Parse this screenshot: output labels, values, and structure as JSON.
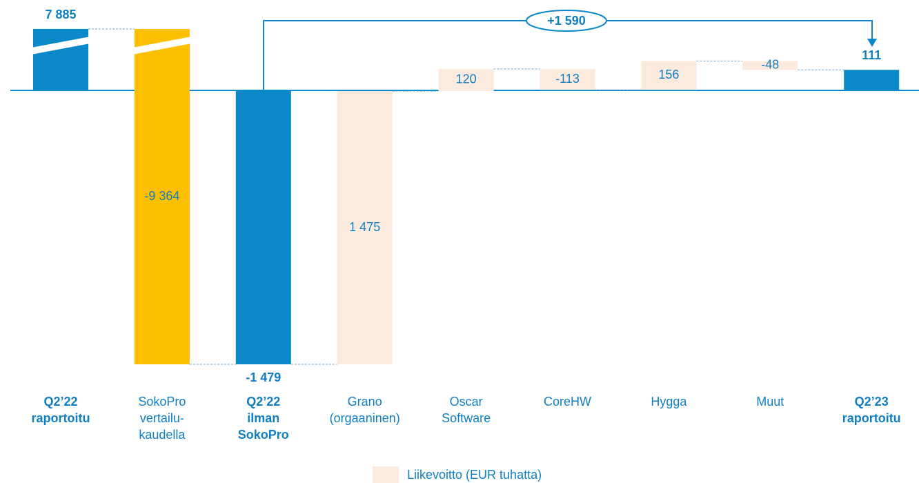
{
  "chart_data": {
    "type": "waterfall",
    "categories": [
      [
        "Q2’22",
        "raportoitu"
      ],
      [
        "SokoPro",
        "vertailu-",
        "kaudella"
      ],
      [
        "Q2’22",
        "ilman",
        "SokoPro"
      ],
      [
        "Grano",
        "(orgaaninen)"
      ],
      [
        "Oscar",
        "Software"
      ],
      [
        "CoreHW"
      ],
      [
        "Hygga"
      ],
      [
        "Muut"
      ],
      [
        "Q2’23",
        "raportoitu"
      ]
    ],
    "values": [
      7885,
      -9364,
      -1479,
      1475,
      120,
      -113,
      156,
      -48,
      111
    ],
    "value_labels": [
      "7 885",
      "-9 364",
      "-1 479",
      "1 475",
      "120",
      "-113",
      "156",
      "-48",
      "111"
    ],
    "kinds": [
      "total",
      "delta",
      "total",
      "delta",
      "delta",
      "delta",
      "delta",
      "delta",
      "total"
    ],
    "colors": [
      "#0a88c8",
      "#fbbf00",
      "#0a88c8",
      "#fdeadf",
      "#fdeadf",
      "#fdeadf",
      "#fdeadf",
      "#fdeadf",
      "#0a88c8"
    ],
    "annotation": "+1 590",
    "legend": {
      "label": "Liikevoitto (EUR tuhatta)",
      "color": "#fdeadf"
    }
  }
}
